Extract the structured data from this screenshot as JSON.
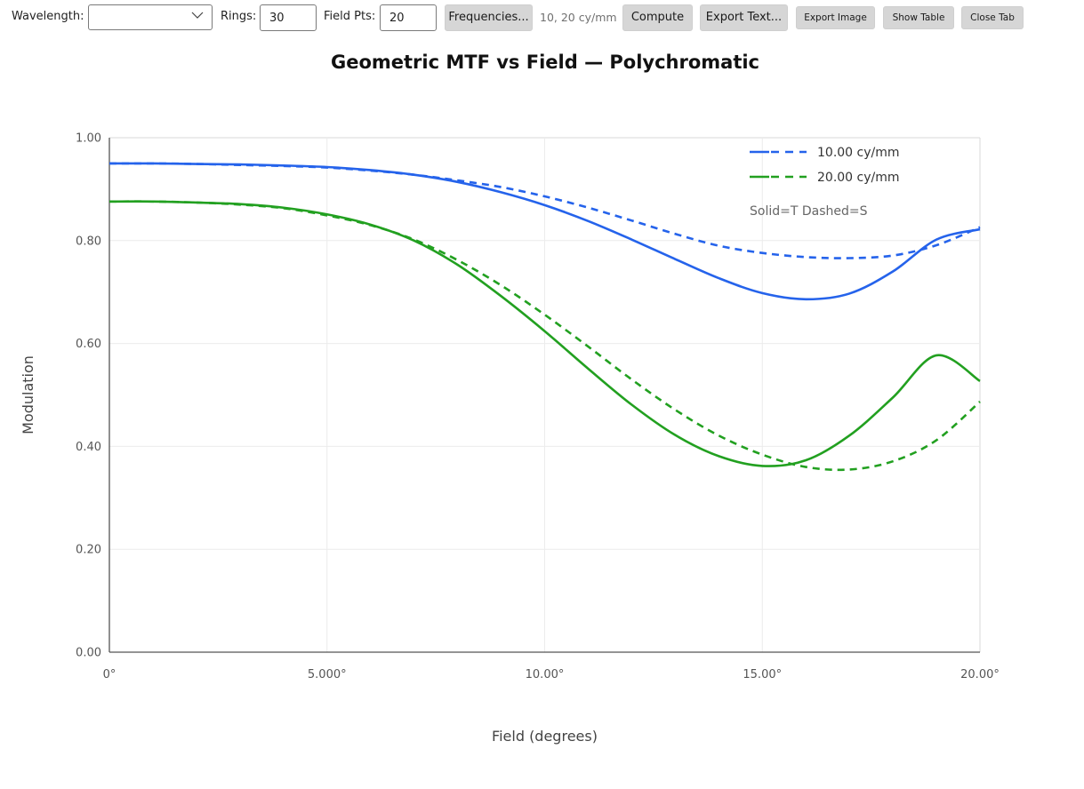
{
  "toolbar": {
    "wavelength_label": "Wavelength:",
    "wavelength_value": "",
    "rings_label": "Rings:",
    "rings_value": "30",
    "field_pts_label": "Field Pts:",
    "field_pts_value": "20",
    "frequencies_button": "Frequencies...",
    "frequencies_summary": "10, 20 cy/mm",
    "compute_button": "Compute",
    "export_text_button": "Export Text...",
    "export_image_button": "Export Image",
    "show_table_button": "Show Table",
    "close_tab_button": "Close Tab"
  },
  "chart_data": {
    "type": "line",
    "title": "Geometric MTF vs Field — Polychromatic",
    "xlabel": "Field (degrees)",
    "ylabel": "Modulation",
    "xlim": [
      0,
      20
    ],
    "ylim": [
      0,
      1
    ],
    "x_ticks": [
      "0°",
      "5.000°",
      "10.00°",
      "15.00°",
      "20.00°"
    ],
    "y_ticks": [
      "0.00",
      "0.20",
      "0.40",
      "0.60",
      "0.80",
      "1.00"
    ],
    "grid": true,
    "legend": {
      "placement": "top-right",
      "entries": [
        {
          "label": "10.00 cy/mm",
          "color": "#2563eb"
        },
        {
          "label": "20.00 cy/mm",
          "color": "#22a020"
        }
      ],
      "note": "Solid=T Dashed=S"
    },
    "x": [
      0,
      1,
      2,
      3,
      4,
      5,
      6,
      7,
      8,
      9,
      10,
      11,
      12,
      13,
      14,
      15,
      16,
      17,
      18,
      19,
      20
    ],
    "series": [
      {
        "frequency": "10.00 cy/mm",
        "orientation": "T",
        "style": "solid",
        "color": "#2563eb",
        "values": [
          0.95,
          0.95,
          0.949,
          0.948,
          0.946,
          0.943,
          0.937,
          0.928,
          0.914,
          0.894,
          0.869,
          0.838,
          0.802,
          0.764,
          0.727,
          0.698,
          0.686,
          0.697,
          0.74,
          0.802,
          0.822
        ]
      },
      {
        "frequency": "10.00 cy/mm",
        "orientation": "S",
        "style": "dashed",
        "color": "#2563eb",
        "values": [
          0.95,
          0.95,
          0.949,
          0.947,
          0.945,
          0.942,
          0.936,
          0.928,
          0.917,
          0.904,
          0.886,
          0.864,
          0.839,
          0.813,
          0.79,
          0.776,
          0.768,
          0.766,
          0.771,
          0.791,
          0.826
        ]
      },
      {
        "frequency": "20.00 cy/mm",
        "orientation": "T",
        "style": "solid",
        "color": "#22a020",
        "values": [
          0.876,
          0.876,
          0.874,
          0.871,
          0.864,
          0.851,
          0.831,
          0.8,
          0.753,
          0.692,
          0.624,
          0.551,
          0.481,
          0.422,
          0.381,
          0.362,
          0.373,
          0.421,
          0.495,
          0.577,
          0.527
        ]
      },
      {
        "frequency": "20.00 cy/mm",
        "orientation": "S",
        "style": "dashed",
        "color": "#22a020",
        "values": [
          0.876,
          0.876,
          0.874,
          0.87,
          0.863,
          0.849,
          0.83,
          0.802,
          0.762,
          0.713,
          0.656,
          0.594,
          0.53,
          0.471,
          0.421,
          0.384,
          0.36,
          0.355,
          0.371,
          0.412,
          0.487
        ]
      }
    ]
  }
}
